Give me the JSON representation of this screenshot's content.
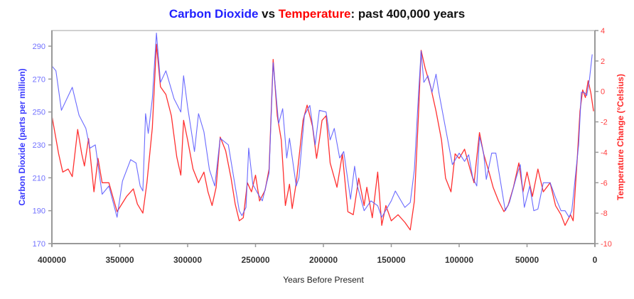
{
  "chart_data": {
    "type": "line",
    "title_parts": [
      {
        "text": "Carbon Dioxide",
        "color": "#2020ff"
      },
      {
        "text": " vs ",
        "color": "#111111"
      },
      {
        "text": "Temperature",
        "color": "#ff0000"
      },
      {
        "text": ": past 400,000 years",
        "color": "#111111"
      }
    ],
    "xlabel": "Years Before Present",
    "ylabel_left": "Carbon Dioxide (parts per million)",
    "ylabel_right": "Temperature Change (°Celsius)",
    "xlim": [
      400000,
      0
    ],
    "ylim_left": [
      170,
      300
    ],
    "ylim_right": [
      -10,
      4
    ],
    "x_ticks": [
      "400000",
      "350000",
      "300000",
      "250000",
      "200000",
      "150000",
      "100000",
      "50000",
      "0"
    ],
    "y_left_ticks": [
      "170",
      "190",
      "210",
      "230",
      "250",
      "270",
      "290"
    ],
    "y_right_ticks": [
      "-10",
      "-8",
      "-6",
      "-4",
      "-2",
      "0",
      "2",
      "4"
    ],
    "grid": false,
    "series": [
      {
        "name": "Carbon Dioxide",
        "axis": "left",
        "color": "#5a5aff",
        "x": [
          400000,
          397000,
          393000,
          385000,
          380000,
          375000,
          372000,
          368000,
          363000,
          358000,
          352000,
          348000,
          342000,
          338000,
          335000,
          333000,
          331000,
          329000,
          326000,
          323000,
          320000,
          316000,
          310000,
          305000,
          303000,
          300000,
          295000,
          292000,
          288000,
          284000,
          280000,
          276000,
          270000,
          266000,
          262000,
          260000,
          257000,
          255000,
          252000,
          248000,
          245000,
          240000,
          237000,
          233000,
          230000,
          227000,
          225000,
          220000,
          218000,
          214000,
          210000,
          206000,
          203000,
          198000,
          195000,
          192000,
          188000,
          185000,
          180000,
          177000,
          175000,
          170000,
          165000,
          160000,
          157000,
          150000,
          147000,
          140000,
          136000,
          133000,
          130000,
          128000,
          126000,
          123000,
          120000,
          117000,
          115000,
          110000,
          105000,
          100000,
          96000,
          93000,
          90000,
          87000,
          85000,
          82000,
          80000,
          76000,
          73000,
          70000,
          66000,
          63000,
          58000,
          55000,
          52000,
          48000,
          45000,
          42000,
          38000,
          33000,
          29000,
          25000,
          22000,
          19000,
          17000,
          12000,
          10000,
          8000,
          6000,
          4000,
          2000
        ],
        "values": [
          278,
          275,
          251,
          265,
          248,
          240,
          228,
          230,
          200,
          205,
          186,
          208,
          221,
          219,
          205,
          202,
          249,
          237,
          258,
          298,
          268,
          275,
          258,
          250,
          272,
          253,
          226,
          249,
          238,
          215,
          205,
          234,
          230,
          210,
          190,
          187,
          192,
          228,
          206,
          200,
          196,
          213,
          280,
          243,
          252,
          222,
          234,
          205,
          210,
          248,
          254,
          230,
          251,
          250,
          233,
          240,
          222,
          226,
          197,
          217,
          205,
          190,
          196,
          193,
          186,
          196,
          202,
          192,
          195,
          215,
          260,
          287,
          268,
          272,
          262,
          273,
          262,
          240,
          218,
          225,
          220,
          224,
          210,
          205,
          235,
          225,
          209,
          225,
          225,
          210,
          190,
          195,
          210,
          218,
          192,
          205,
          190,
          191,
          207,
          207,
          198,
          190,
          190,
          186,
          190,
          230,
          262,
          262,
          260,
          270,
          285
        ]
      },
      {
        "name": "Temperature",
        "axis": "right",
        "color": "#ff1a1a",
        "x": [
          400000,
          395000,
          392000,
          388000,
          385000,
          381000,
          378000,
          376000,
          373000,
          369000,
          366000,
          363000,
          358000,
          352000,
          345000,
          340000,
          337000,
          333000,
          330000,
          326000,
          323000,
          320000,
          316000,
          312000,
          308000,
          305000,
          303000,
          300000,
          296000,
          292000,
          288000,
          285000,
          282000,
          279000,
          276000,
          272000,
          268000,
          265000,
          262000,
          259000,
          256000,
          253000,
          250000,
          247000,
          243000,
          240000,
          237000,
          234000,
          231000,
          228000,
          225000,
          223000,
          220000,
          215000,
          212000,
          208000,
          205000,
          203000,
          201000,
          198000,
          195000,
          190000,
          186000,
          182000,
          178000,
          174000,
          170000,
          168000,
          164000,
          160000,
          157000,
          154000,
          150000,
          145000,
          140000,
          136000,
          133000,
          130000,
          128000,
          125000,
          121000,
          117000,
          113000,
          110000,
          106000,
          103000,
          100000,
          96000,
          92000,
          89000,
          85000,
          82000,
          78000,
          75000,
          71000,
          67000,
          64000,
          60000,
          56000,
          53000,
          50000,
          46000,
          42000,
          38000,
          33000,
          29000,
          25000,
          22000,
          18000,
          16000,
          13000,
          11000,
          9000,
          7000,
          5000,
          3000,
          1000
        ],
        "values": [
          -1.6,
          -4.1,
          -5.3,
          -5.1,
          -5.6,
          -2.5,
          -4.1,
          -4.9,
          -3.1,
          -6.6,
          -4.4,
          -6.0,
          -6.0,
          -7.9,
          -6.9,
          -6.4,
          -7.4,
          -8.0,
          -6.0,
          -2.4,
          3.1,
          0.3,
          -0.2,
          -1.6,
          -4.3,
          -5.5,
          -1.9,
          -3.2,
          -5.1,
          -6.0,
          -5.3,
          -6.6,
          -7.5,
          -6.3,
          -3.0,
          -3.9,
          -5.7,
          -7.4,
          -8.5,
          -8.3,
          -6.0,
          -6.6,
          -5.5,
          -7.2,
          -6.5,
          -5.1,
          2.1,
          -1.6,
          -3.2,
          -7.5,
          -6.1,
          -7.7,
          -6.0,
          -1.9,
          -0.9,
          -2.3,
          -4.4,
          -3.2,
          -1.9,
          -1.6,
          -4.7,
          -6.3,
          -4.1,
          -7.9,
          -8.1,
          -5.7,
          -7.5,
          -6.3,
          -8.3,
          -5.3,
          -8.8,
          -7.5,
          -8.5,
          -8.1,
          -8.6,
          -9.1,
          -7.2,
          -1.6,
          2.7,
          1.5,
          0.3,
          -1.3,
          -3.2,
          -5.7,
          -6.6,
          -4.1,
          -4.4,
          -3.8,
          -5.1,
          -6.0,
          -2.7,
          -4.1,
          -5.3,
          -6.3,
          -7.2,
          -7.9,
          -7.5,
          -6.3,
          -4.7,
          -6.6,
          -5.3,
          -6.9,
          -5.1,
          -6.6,
          -6.0,
          -7.5,
          -8.1,
          -8.8,
          -8.1,
          -8.5,
          -4.4,
          -1.3,
          0.1,
          -0.4,
          0.7,
          -0.1,
          -1.3
        ]
      }
    ],
    "colors": {
      "left_axis": "#7070ff",
      "right_axis": "#ff4040",
      "axis_line": "#999999"
    }
  }
}
